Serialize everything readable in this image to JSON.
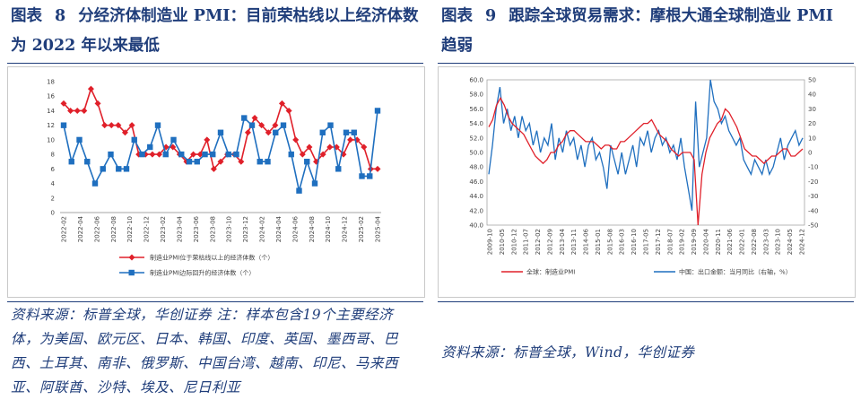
{
  "left": {
    "title_fig": "图表",
    "title_num": "8",
    "title_text": "分经济体制造业 PMI：目前荣枯线以上经济体数为 2022 年以来最低",
    "source": "资料来源：标普全球，华创证券   注：样本包含19个主要经济体，为美国、欧元区、日本、韩国、印度、英国、墨西哥、巴西、土耳其、南非、俄罗斯、中国台湾、越南、印尼、马来西亚、阿联酋、沙特、埃及、尼日利亚"
  },
  "right": {
    "title_fig": "图表",
    "title_num": "9",
    "title_text": "跟踪全球贸易需求：摩根大通全球制造业 PMI 趋弱",
    "source": "资料来源：标普全球，Wind，华创证券"
  },
  "colors": {
    "red": "#e0202a",
    "blue": "#1f6fbf",
    "title": "#1f3d7a"
  },
  "chart_data": [
    {
      "type": "line",
      "title": "",
      "x_tick_labels": [
        "2022-02",
        "2022-04",
        "2022-06",
        "2022-08",
        "2022-10",
        "2022-12",
        "2023-02",
        "2023-04",
        "2023-06",
        "2023-08",
        "2023-10",
        "2023-12",
        "2024-02",
        "2024-04",
        "2024-06",
        "2024-08",
        "2024-10",
        "2024-12",
        "2025-02",
        "2025-04"
      ],
      "ylim": [
        0,
        18
      ],
      "yticks": [
        0,
        2,
        4,
        6,
        8,
        10,
        12,
        14,
        16,
        18
      ],
      "series": [
        {
          "name": "制造业PMI位于荣枯线以上的经济体数（个）",
          "color": "#e0202a",
          "marker": "diamond",
          "values": [
            15,
            14,
            14,
            14,
            17,
            15,
            12,
            12,
            12,
            11,
            12,
            8,
            8,
            8,
            8,
            9,
            9,
            8,
            7,
            8,
            8,
            10,
            6,
            7,
            8,
            8,
            7,
            11,
            13,
            12,
            11,
            12,
            15,
            14,
            10,
            8,
            9,
            7,
            8,
            9,
            9,
            8,
            10,
            10,
            9,
            6,
            6
          ]
        },
        {
          "name": "制造业PMI边际回升的经济体数（个）",
          "color": "#1f6fbf",
          "marker": "square",
          "values": [
            12,
            7,
            10,
            7,
            4,
            6,
            8,
            6,
            6,
            10,
            8,
            9,
            12,
            8,
            10,
            8,
            7,
            7,
            8,
            8,
            11,
            8,
            8,
            13,
            12,
            7,
            7,
            11,
            12,
            8,
            3,
            7,
            4,
            11,
            12,
            6,
            11,
            11,
            5,
            5,
            14
          ]
        }
      ],
      "legend_position": "bottom"
    },
    {
      "type": "line",
      "title": "",
      "x_tick_labels": [
        "2009-10",
        "2010-05",
        "2010-12",
        "2011-07",
        "2012-02",
        "2012-09",
        "2013-04",
        "2013-11",
        "2014-06",
        "2015-01",
        "2015-08",
        "2016-03",
        "2016-10",
        "2017-05",
        "2017-12",
        "2018-07",
        "2019-02",
        "2019-09",
        "2020-04",
        "2020-11",
        "2021-06",
        "2022-01",
        "2022-08",
        "2023-03",
        "2023-10",
        "2024-05",
        "2024-12"
      ],
      "y_left": {
        "label": "",
        "lim": [
          40,
          60
        ],
        "ticks": [
          "40.0",
          "42.0",
          "44.0",
          "46.0",
          "48.0",
          "50.0",
          "52.0",
          "54.0",
          "56.0",
          "58.0",
          "60.0"
        ]
      },
      "y_right": {
        "label": "",
        "lim": [
          -50,
          50
        ],
        "ticks": [
          "-50",
          "-40",
          "-30",
          "-20",
          "-10",
          "0",
          "10",
          "20",
          "30",
          "40",
          "50"
        ]
      },
      "series": [
        {
          "name": "全球：制造业PMI",
          "axis": "left",
          "color": "#e0202a",
          "values": [
            53.5,
            54.5,
            56.5,
            57.5,
            56.5,
            55,
            54,
            53.5,
            53,
            52.5,
            51.5,
            50.5,
            49.5,
            49,
            48.5,
            49,
            50,
            50,
            51,
            51.5,
            52.5,
            53,
            53,
            52.5,
            52,
            51.5,
            51.5,
            51.5,
            51,
            50.5,
            51,
            51,
            50.5,
            50.5,
            51.5,
            51.5,
            52,
            52.5,
            53,
            53.5,
            54,
            54,
            54.5,
            53.5,
            52.5,
            52,
            51.5,
            50.5,
            50,
            49.5,
            50,
            50,
            50,
            49,
            40,
            47,
            50,
            52,
            53,
            54,
            54.5,
            56,
            55.5,
            54.5,
            53.5,
            52,
            50.5,
            50,
            49.5,
            49.5,
            49,
            48.5,
            49,
            49.5,
            49.5,
            50,
            50.5,
            50.5,
            49.5,
            49.5,
            50,
            50.5
          ]
        },
        {
          "name": "中国：出口金额：当月同比（右轴，%）",
          "axis": "right",
          "color": "#1f6fbf",
          "values": [
            -15,
            5,
            30,
            45,
            20,
            30,
            15,
            25,
            10,
            25,
            15,
            20,
            5,
            15,
            0,
            10,
            5,
            20,
            -5,
            10,
            0,
            15,
            5,
            10,
            -5,
            5,
            -10,
            5,
            10,
            -5,
            0,
            -10,
            -25,
            5,
            -5,
            -15,
            0,
            -15,
            -5,
            5,
            -10,
            10,
            5,
            15,
            0,
            10,
            15,
            5,
            10,
            0,
            5,
            -5,
            10,
            -10,
            -25,
            -40,
            35,
            -10,
            0,
            10,
            60,
            35,
            30,
            20,
            25,
            15,
            10,
            5,
            10,
            -5,
            -10,
            -15,
            -5,
            -10,
            -15,
            -5,
            -15,
            -10,
            0,
            10,
            -5,
            5,
            10,
            15,
            5,
            10
          ]
        }
      ],
      "legend_position": "bottom"
    }
  ]
}
